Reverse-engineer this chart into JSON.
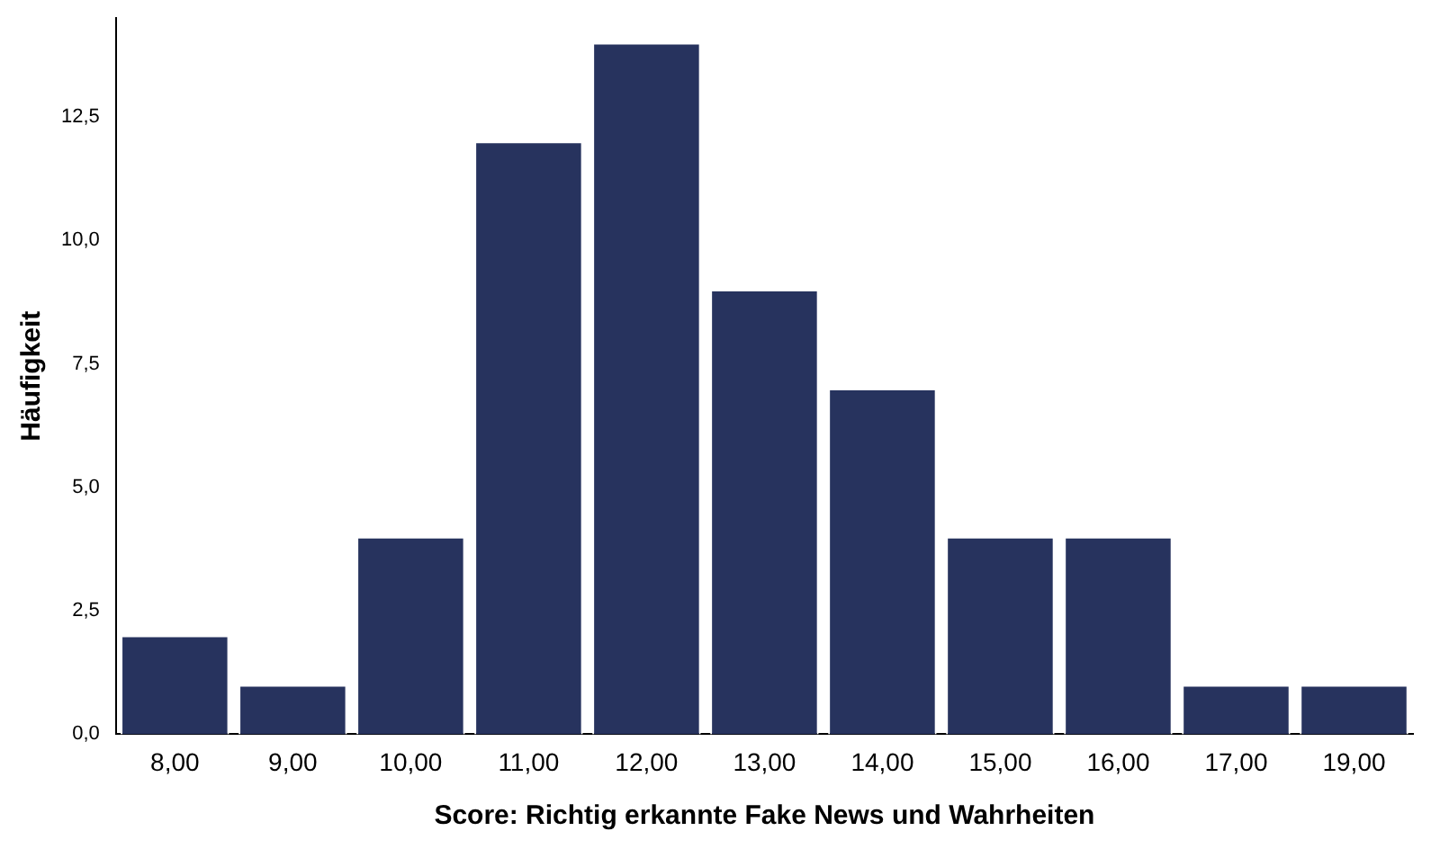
{
  "chart_data": {
    "type": "bar",
    "xlabel": "Score: Richtig erkannte Fake News und Wahrheiten",
    "ylabel": "Häufigkeit",
    "categories": [
      "8,00",
      "9,00",
      "10,00",
      "11,00",
      "12,00",
      "13,00",
      "14,00",
      "15,00",
      "16,00",
      "17,00",
      "19,00"
    ],
    "values": [
      2,
      1,
      4,
      12,
      14,
      9,
      7,
      4,
      4,
      1,
      1
    ],
    "color": "#27335e",
    "ylim": [
      0,
      14.5
    ],
    "yticks": [
      {
        "value": 0,
        "label": "0,0"
      },
      {
        "value": 2.5,
        "label": "2,5"
      },
      {
        "value": 5,
        "label": "5,0"
      },
      {
        "value": 7.5,
        "label": "7,5"
      },
      {
        "value": 10,
        "label": "10,0"
      },
      {
        "value": 12.5,
        "label": "12,5"
      }
    ],
    "grid": false,
    "legend": false
  }
}
